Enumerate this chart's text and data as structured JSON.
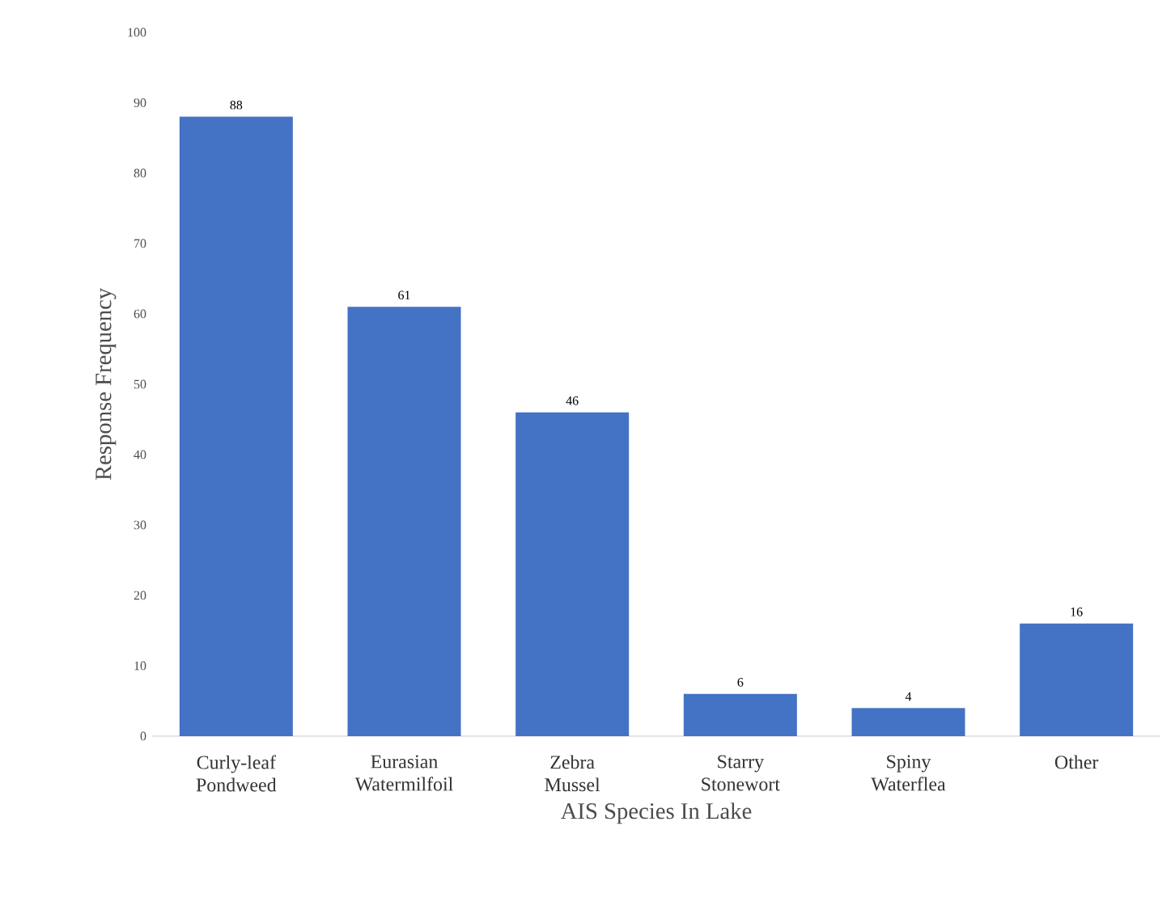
{
  "chart_data": {
    "type": "bar",
    "xlabel": "AIS Species In Lake",
    "ylabel": "Response Frequency",
    "categories": [
      "Curly-leaf Pondweed",
      "Eurasian Watermilfoil",
      "Zebra Mussel",
      "Starry Stonewort",
      "Spiny Waterflea",
      "Other"
    ],
    "values": [
      88,
      61,
      46,
      6,
      4,
      16
    ],
    "color": "#4472c4",
    "ylim": [
      0,
      100
    ],
    "yticks": [
      0,
      10,
      20,
      30,
      40,
      50,
      60,
      70,
      80,
      90,
      100
    ],
    "data_labels": true
  }
}
